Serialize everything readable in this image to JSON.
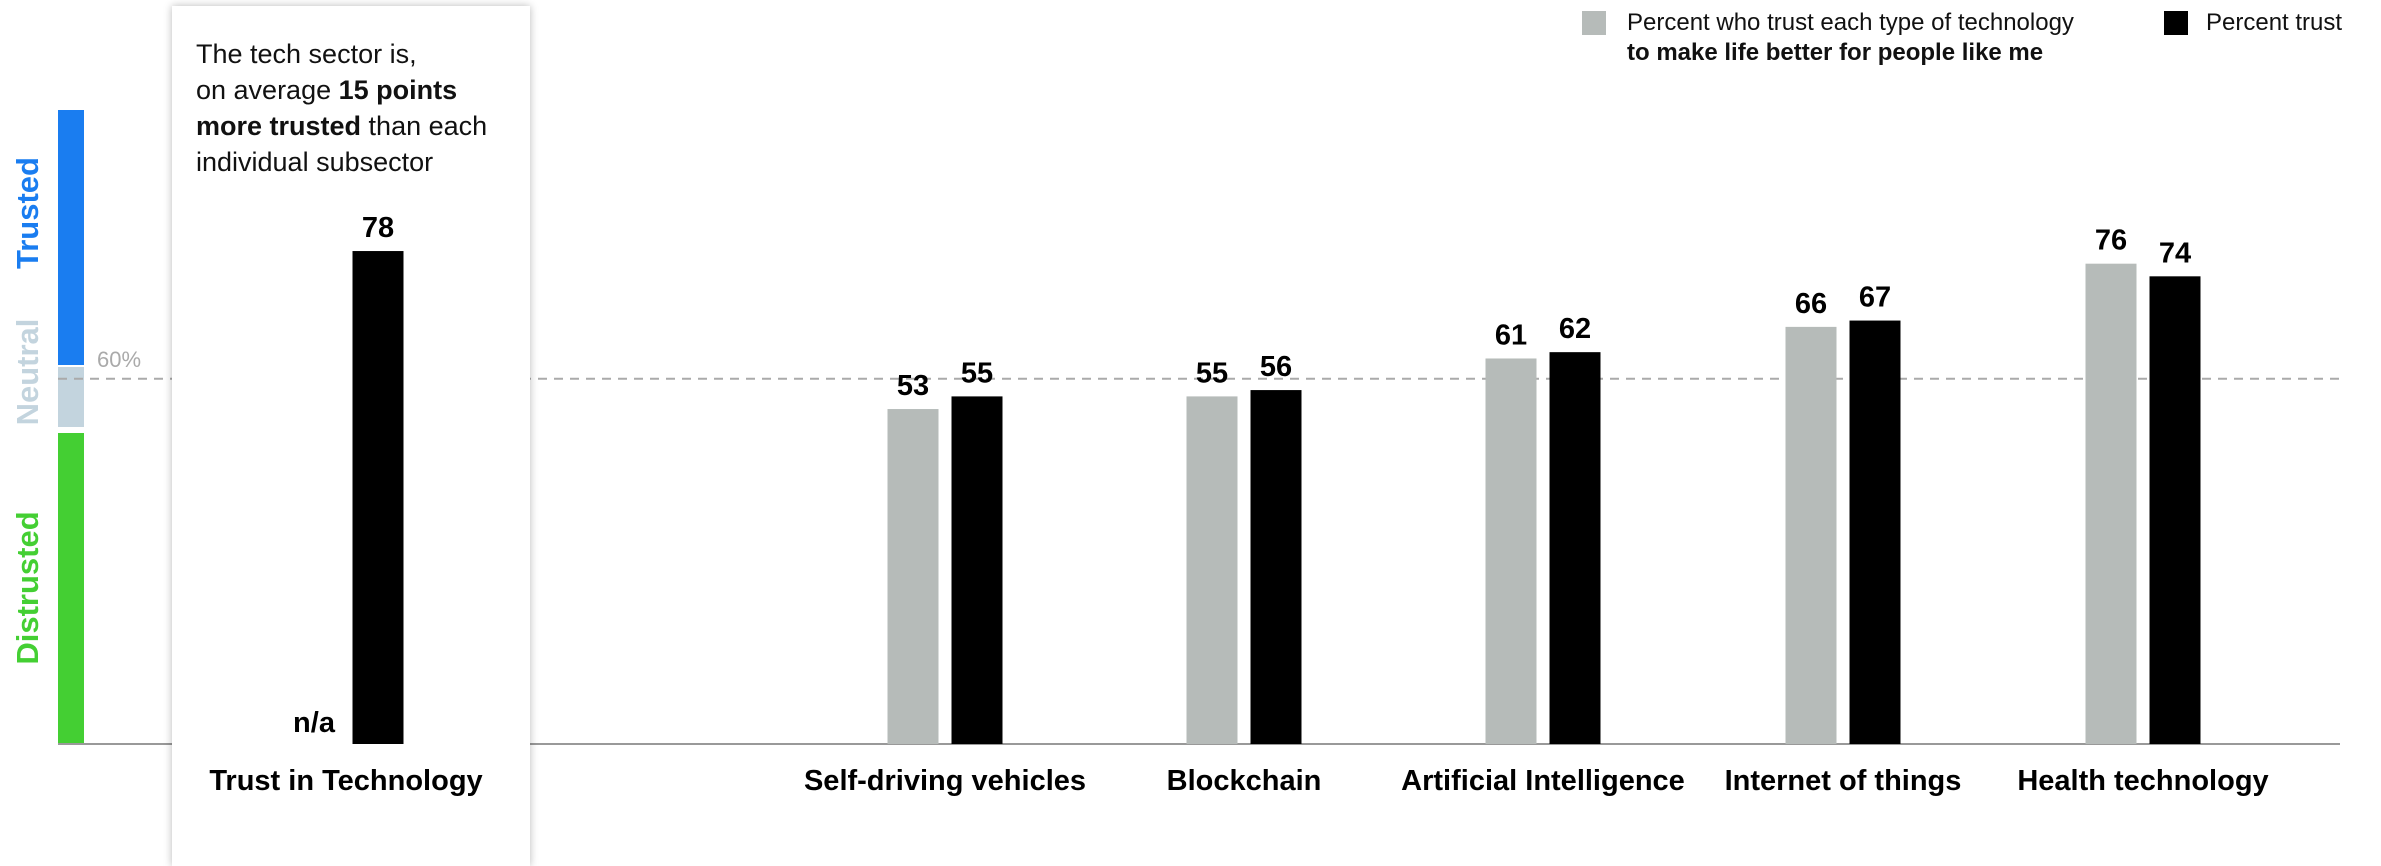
{
  "callout": {
    "line1": "The tech sector is,",
    "line2_pre": "on average ",
    "line2_bold": "15 points",
    "line3_bold": "more trusted",
    "line3_post": " than each",
    "line4": "individual subsector"
  },
  "legend": {
    "gray_label_line1": "Percent who trust each type of technology",
    "gray_label_line2": "to make life better for people like me",
    "black_label": "Percent trust"
  },
  "bands": {
    "trusted": "Trusted",
    "neutral": "Neutral",
    "distrusted": "Distrusted",
    "trusted_color": "#1a7df0",
    "neutral_color": "#c3d4de",
    "distrusted_color": "#44cf33"
  },
  "colors": {
    "gray": "#b6bbb9",
    "black": "#000000"
  },
  "chart_data": {
    "type": "bar",
    "title": "",
    "xlabel": "",
    "ylabel": "",
    "ylim": [
      0,
      100
    ],
    "reference_line": {
      "value": 60,
      "label": "60%"
    },
    "categories": [
      "Trust in Technology",
      "Self-driving vehicles",
      "Blockchain",
      "Artificial Intelligence",
      "Internet of things",
      "Health technology"
    ],
    "series": [
      {
        "name": "Percent who trust each type of technology to make life better for people like me",
        "values": [
          null,
          53,
          55,
          61,
          66,
          76
        ],
        "missing_label": "n/a"
      },
      {
        "name": "Percent trust",
        "values": [
          78,
          55,
          56,
          62,
          67,
          74
        ]
      }
    ]
  }
}
